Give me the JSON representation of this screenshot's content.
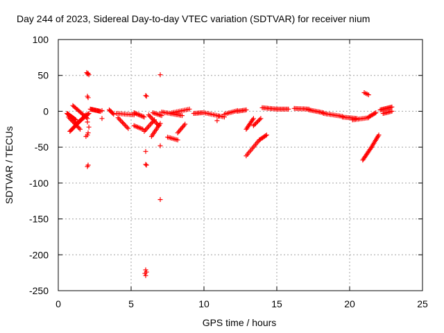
{
  "chart_data": {
    "type": "scatter",
    "title": "Day 244 of 2023, Sidereal Day-to-day VTEC variation (SDTVAR) for receiver nium",
    "xlabel": "GPS time / hours",
    "ylabel": "SDTVAR / TECUs",
    "xlim": [
      0,
      25
    ],
    "ylim": [
      -250,
      100
    ],
    "xticks": [
      0,
      5,
      10,
      15,
      20,
      25
    ],
    "yticks": [
      -250,
      -200,
      -150,
      -100,
      -50,
      0,
      50,
      100
    ],
    "grid": true,
    "marker": "+",
    "color": "#ff0000",
    "series": [
      {
        "name": "SDTVAR",
        "segments": [
          {
            "x0": 0.6,
            "y0": -3,
            "x1": 1.2,
            "y1": -12,
            "n": 20
          },
          {
            "x0": 0.8,
            "y0": -28,
            "x1": 1.9,
            "y1": -5,
            "n": 20
          },
          {
            "x0": 1.0,
            "y0": 8,
            "x1": 2.0,
            "y1": -10,
            "n": 15
          },
          {
            "x0": 1.2,
            "y0": -18,
            "x1": 2.1,
            "y1": -3,
            "n": 15
          },
          {
            "x0": 0.7,
            "y0": -8,
            "x1": 1.5,
            "y1": -25,
            "n": 12
          },
          {
            "x0": 2.2,
            "y0": 3,
            "x1": 2.9,
            "y1": 0,
            "n": 14
          },
          {
            "x0": 3.5,
            "y0": 2,
            "x1": 3.8,
            "y1": -4,
            "n": 6
          },
          {
            "x0": 4.0,
            "y0": -3,
            "x1": 5.2,
            "y1": -5,
            "n": 12
          },
          {
            "x0": 4.1,
            "y0": -9,
            "x1": 4.8,
            "y1": -24,
            "n": 10
          },
          {
            "x0": 5.2,
            "y0": -2,
            "x1": 5.9,
            "y1": -8,
            "n": 10
          },
          {
            "x0": 5.2,
            "y0": -20,
            "x1": 5.8,
            "y1": -25,
            "n": 8
          },
          {
            "x0": 5.9,
            "y0": -28,
            "x1": 6.6,
            "y1": -12,
            "n": 10
          },
          {
            "x0": 6.2,
            "y0": -5,
            "x1": 6.9,
            "y1": -20,
            "n": 10
          },
          {
            "x0": 6.4,
            "y0": -35,
            "x1": 7.0,
            "y1": -17,
            "n": 10
          },
          {
            "x0": 6.5,
            "y0": -2,
            "x1": 7.1,
            "y1": -6,
            "n": 8
          },
          {
            "x0": 7.1,
            "y0": -1,
            "x1": 8.5,
            "y1": -6,
            "n": 15
          },
          {
            "x0": 7.5,
            "y0": -36,
            "x1": 8.2,
            "y1": -40,
            "n": 8
          },
          {
            "x0": 8.2,
            "y0": -30,
            "x1": 8.7,
            "y1": -18,
            "n": 8
          },
          {
            "x0": 7.8,
            "y0": -2,
            "x1": 9.0,
            "y1": 3,
            "n": 12
          },
          {
            "x0": 9.3,
            "y0": -3,
            "x1": 9.9,
            "y1": -2,
            "n": 8
          },
          {
            "x0": 10.0,
            "y0": -2,
            "x1": 11.4,
            "y1": -8,
            "n": 14
          },
          {
            "x0": 11.4,
            "y0": -4,
            "x1": 12.3,
            "y1": 1,
            "n": 10
          },
          {
            "x0": 12.3,
            "y0": 0,
            "x1": 12.9,
            "y1": 2,
            "n": 8
          },
          {
            "x0": 12.9,
            "y0": -25,
            "x1": 13.4,
            "y1": -10,
            "n": 10
          },
          {
            "x0": 13.4,
            "y0": -20,
            "x1": 13.9,
            "y1": -10,
            "n": 8
          },
          {
            "x0": 12.9,
            "y0": -62,
            "x1": 13.8,
            "y1": -40,
            "n": 12
          },
          {
            "x0": 13.8,
            "y0": -40,
            "x1": 14.3,
            "y1": -33,
            "n": 8
          },
          {
            "x0": 14.0,
            "y0": 5,
            "x1": 15.0,
            "y1": 3,
            "n": 12
          },
          {
            "x0": 15.0,
            "y0": 3,
            "x1": 15.8,
            "y1": 3,
            "n": 10
          },
          {
            "x0": 16.2,
            "y0": 4,
            "x1": 17.2,
            "y1": 3,
            "n": 12
          },
          {
            "x0": 17.2,
            "y0": 2,
            "x1": 18.2,
            "y1": -2,
            "n": 12
          },
          {
            "x0": 18.2,
            "y0": -3,
            "x1": 19.5,
            "y1": -7,
            "n": 14
          },
          {
            "x0": 19.5,
            "y0": -8,
            "x1": 20.5,
            "y1": -10,
            "n": 12
          },
          {
            "x0": 20.2,
            "y0": -12,
            "x1": 21.3,
            "y1": -9,
            "n": 12
          },
          {
            "x0": 21.3,
            "y0": -8,
            "x1": 21.8,
            "y1": -2,
            "n": 8
          },
          {
            "x0": 21.0,
            "y0": 26,
            "x1": 21.3,
            "y1": 23,
            "n": 4
          },
          {
            "x0": 20.9,
            "y0": -68,
            "x1": 21.5,
            "y1": -50,
            "n": 12
          },
          {
            "x0": 21.5,
            "y0": -50,
            "x1": 22.0,
            "y1": -33,
            "n": 10
          },
          {
            "x0": 22.1,
            "y0": 2,
            "x1": 22.9,
            "y1": 6,
            "n": 12
          },
          {
            "x0": 22.3,
            "y0": -3,
            "x1": 22.9,
            "y1": 0,
            "n": 8
          }
        ],
        "points": [
          [
            1.95,
            54
          ],
          [
            2.0,
            52
          ],
          [
            2.05,
            53
          ],
          [
            2.1,
            51
          ],
          [
            2.0,
            21
          ],
          [
            2.05,
            19
          ],
          [
            2.0,
            -33
          ],
          [
            2.05,
            -30
          ],
          [
            1.9,
            -35
          ],
          [
            2.0,
            -77
          ],
          [
            2.05,
            -75
          ],
          [
            2.0,
            -15
          ],
          [
            2.1,
            -22
          ],
          [
            6.0,
            22
          ],
          [
            6.05,
            21
          ],
          [
            6.0,
            -56
          ],
          [
            6.0,
            -74
          ],
          [
            6.05,
            -75
          ],
          [
            6.0,
            -221
          ],
          [
            6.05,
            -224
          ],
          [
            5.95,
            -226
          ],
          [
            6.0,
            -229
          ],
          [
            7.0,
            51
          ],
          [
            7.0,
            -48
          ],
          [
            7.0,
            -123
          ],
          [
            3.0,
            -10
          ],
          [
            3.0,
            1
          ],
          [
            10.9,
            -13
          ],
          [
            11.0,
            -7
          ]
        ]
      }
    ]
  }
}
